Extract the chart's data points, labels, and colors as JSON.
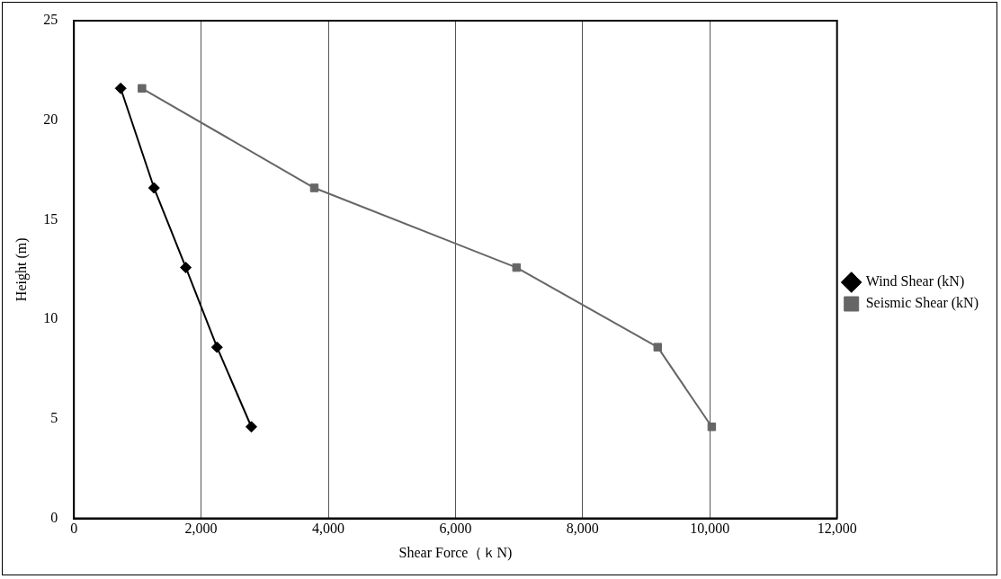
{
  "chart_data": {
    "type": "line",
    "xlabel": "Shear Force（ｋN)",
    "ylabel": "Height (m)",
    "xlim": [
      0,
      12000
    ],
    "xticks": [
      {
        "value": 0,
        "label": "0"
      },
      {
        "value": 2000,
        "label": "2,000"
      },
      {
        "value": 4000,
        "label": "4,000"
      },
      {
        "value": 6000,
        "label": "6,000"
      },
      {
        "value": 8000,
        "label": "8,000"
      },
      {
        "value": 10000,
        "label": "10,000"
      },
      {
        "value": 12000,
        "label": "12,000"
      }
    ],
    "ylim": [
      0,
      25
    ],
    "yticks": [
      0,
      5,
      10,
      15,
      20,
      25
    ],
    "grid": "x",
    "legend": "right",
    "line_style": "solid",
    "series": [
      {
        "name": "Wind Shear (kN)",
        "color": "#000000",
        "marker": "diamond",
        "x": [
          735,
          1260,
          1760,
          2250,
          2790
        ],
        "values": [
          21.6,
          16.6,
          12.6,
          8.6,
          4.6
        ]
      },
      {
        "name": "Seismic Shear (kN)",
        "color": "#666666",
        "marker": "square",
        "x": [
          1070,
          3780,
          6960,
          9180,
          10030
        ],
        "values": [
          21.6,
          16.6,
          12.6,
          8.6,
          4.6
        ]
      }
    ]
  }
}
